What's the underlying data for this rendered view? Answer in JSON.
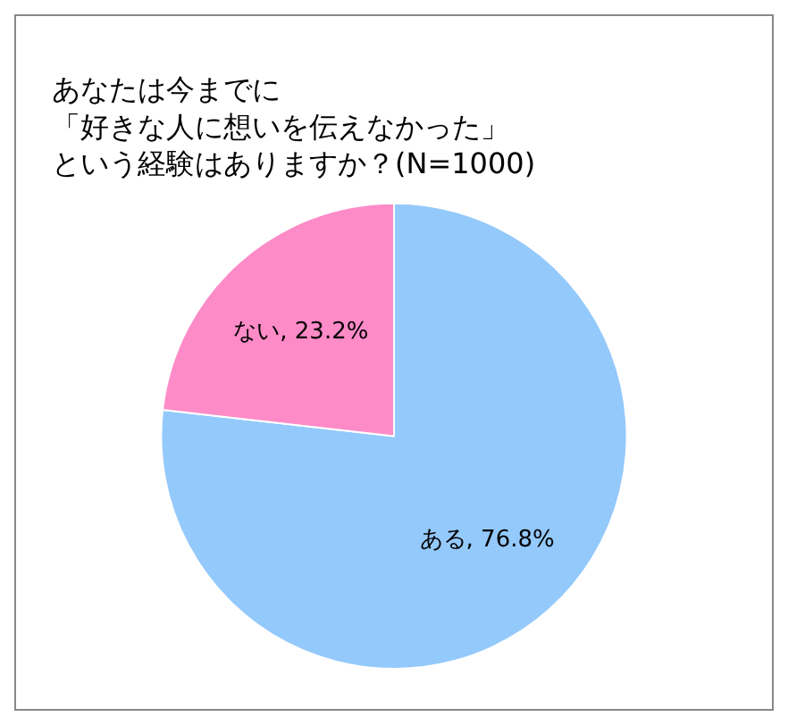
{
  "chart_data": {
    "type": "pie",
    "title": [
      "あなたは今までに",
      "「好きな人に想いを伝えなかった」",
      "という経験はありますか？(N=1000)"
    ],
    "categories": [
      "ある",
      "ない"
    ],
    "values": [
      76.8,
      23.2
    ],
    "value_labels": [
      "76.8%",
      "23.2%"
    ],
    "colors": [
      "#94c9fb",
      "#fd8bc8"
    ],
    "legend": false
  }
}
